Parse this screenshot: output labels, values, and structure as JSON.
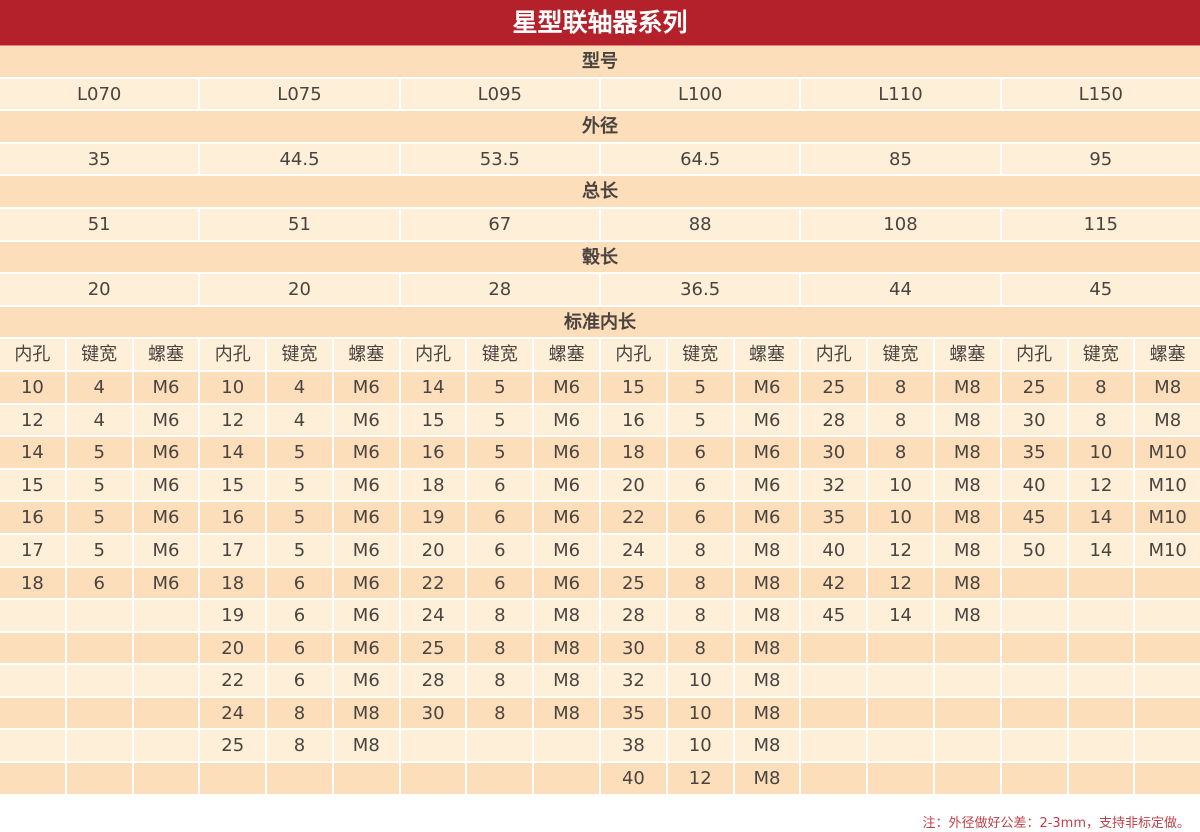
{
  "title": "星型联轴器系列",
  "colors": {
    "title_bg": "#b5212b",
    "row_dark": "#fcdebb",
    "row_light": "#fef0d8",
    "note": "#c0414a"
  },
  "sections": [
    {
      "label": "型号",
      "values": [
        "L070",
        "L075",
        "L095",
        "L100",
        "L110",
        "L150"
      ]
    },
    {
      "label": "外径",
      "values": [
        "35",
        "44.5",
        "53.5",
        "64.5",
        "85",
        "95"
      ]
    },
    {
      "label": "总长",
      "values": [
        "51",
        "51",
        "67",
        "88",
        "108",
        "115"
      ]
    },
    {
      "label": "毂长",
      "values": [
        "20",
        "20",
        "28",
        "36.5",
        "44",
        "45"
      ]
    }
  ],
  "bore_section": {
    "label": "标准内长",
    "columns": [
      "内孔",
      "键宽",
      "螺塞"
    ],
    "groups": [
      [
        [
          "10",
          "4",
          "M6"
        ],
        [
          "12",
          "4",
          "M6"
        ],
        [
          "14",
          "5",
          "M6"
        ],
        [
          "15",
          "5",
          "M6"
        ],
        [
          "16",
          "5",
          "M6"
        ],
        [
          "17",
          "5",
          "M6"
        ],
        [
          "18",
          "6",
          "M6"
        ]
      ],
      [
        [
          "10",
          "4",
          "M6"
        ],
        [
          "12",
          "4",
          "M6"
        ],
        [
          "14",
          "5",
          "M6"
        ],
        [
          "15",
          "5",
          "M6"
        ],
        [
          "16",
          "5",
          "M6"
        ],
        [
          "17",
          "5",
          "M6"
        ],
        [
          "18",
          "6",
          "M6"
        ],
        [
          "19",
          "6",
          "M6"
        ],
        [
          "20",
          "6",
          "M6"
        ],
        [
          "22",
          "6",
          "M6"
        ],
        [
          "24",
          "8",
          "M8"
        ],
        [
          "25",
          "8",
          "M8"
        ]
      ],
      [
        [
          "14",
          "5",
          "M6"
        ],
        [
          "15",
          "5",
          "M6"
        ],
        [
          "16",
          "5",
          "M6"
        ],
        [
          "18",
          "6",
          "M6"
        ],
        [
          "19",
          "6",
          "M6"
        ],
        [
          "20",
          "6",
          "M6"
        ],
        [
          "22",
          "6",
          "M6"
        ],
        [
          "24",
          "8",
          "M8"
        ],
        [
          "25",
          "8",
          "M8"
        ],
        [
          "28",
          "8",
          "M8"
        ],
        [
          "30",
          "8",
          "M8"
        ]
      ],
      [
        [
          "15",
          "5",
          "M6"
        ],
        [
          "16",
          "5",
          "M6"
        ],
        [
          "18",
          "6",
          "M6"
        ],
        [
          "20",
          "6",
          "M6"
        ],
        [
          "22",
          "6",
          "M6"
        ],
        [
          "24",
          "8",
          "M8"
        ],
        [
          "25",
          "8",
          "M8"
        ],
        [
          "28",
          "8",
          "M8"
        ],
        [
          "30",
          "8",
          "M8"
        ],
        [
          "32",
          "10",
          "M8"
        ],
        [
          "35",
          "10",
          "M8"
        ],
        [
          "38",
          "10",
          "M8"
        ],
        [
          "40",
          "12",
          "M8"
        ]
      ],
      [
        [
          "25",
          "8",
          "M8"
        ],
        [
          "28",
          "8",
          "M8"
        ],
        [
          "30",
          "8",
          "M8"
        ],
        [
          "32",
          "10",
          "M8"
        ],
        [
          "35",
          "10",
          "M8"
        ],
        [
          "40",
          "12",
          "M8"
        ],
        [
          "42",
          "12",
          "M8"
        ],
        [
          "45",
          "14",
          "M8"
        ]
      ],
      [
        [
          "25",
          "8",
          "M8"
        ],
        [
          "30",
          "8",
          "M8"
        ],
        [
          "35",
          "10",
          "M10"
        ],
        [
          "40",
          "12",
          "M10"
        ],
        [
          "45",
          "14",
          "M10"
        ],
        [
          "50",
          "14",
          "M10"
        ]
      ]
    ]
  },
  "note": "注：外径做好公差：2-3mm，支持非标定做。"
}
